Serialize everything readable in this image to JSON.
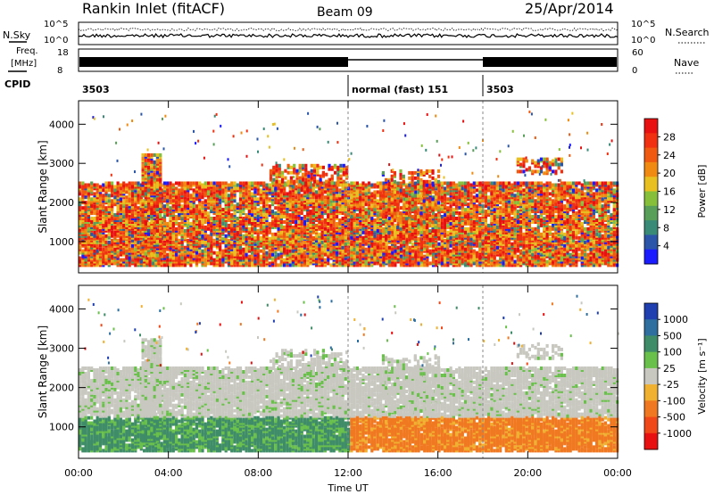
{
  "header": {
    "station": "Rankin Inlet (fitACF)",
    "beam": "Beam 09",
    "date": "25/Apr/2014"
  },
  "noise_panel": {
    "left_label": "N.Sky",
    "right_label": "N.Search",
    "y_ticks_left": [
      "10^5",
      "10^0"
    ],
    "y_ticks_right": [
      "10^5",
      "10^0"
    ]
  },
  "freq_panel": {
    "left_label_1": "Freq.",
    "left_label_2": "[MHz]",
    "right_label": "Nave",
    "y_ticks_left": [
      "18",
      "8"
    ],
    "y_ticks_right": [
      "60",
      "0"
    ]
  },
  "cpid_panel": {
    "label": "CPID",
    "segments": [
      {
        "start_hour": 0,
        "end_hour": 12,
        "text": "3503"
      },
      {
        "start_hour": 12,
        "end_hour": 18,
        "text": "normal (fast) 151"
      },
      {
        "start_hour": 18,
        "end_hour": 24,
        "text": "3503"
      }
    ]
  },
  "chart_data": [
    {
      "type": "heatmap",
      "title": "Power",
      "ylabel": "Slant Range [km]",
      "xlabel": "Time UT",
      "xlim": [
        0,
        24
      ],
      "ylim": [
        200,
        4600
      ],
      "x_ticks": [
        "00:00",
        "04:00",
        "08:00",
        "12:00",
        "16:00",
        "20:00",
        "00:00"
      ],
      "y_ticks": [
        1000,
        2000,
        3000,
        4000
      ],
      "colorbar": {
        "label": "Power [dB]",
        "ticks": [
          4,
          8,
          12,
          16,
          20,
          24,
          28
        ],
        "colors": [
          "#1b1bff",
          "#2a55a8",
          "#3a8a78",
          "#58a05a",
          "#86c03a",
          "#e8c020",
          "#f08a10",
          "#f05a10",
          "#f03010",
          "#e81010"
        ]
      }
    },
    {
      "type": "heatmap",
      "title": "Velocity",
      "ylabel": "Slant Range [km]",
      "xlabel": "Time UT",
      "xlim": [
        0,
        24
      ],
      "ylim": [
        200,
        4600
      ],
      "x_ticks": [
        "00:00",
        "04:00",
        "08:00",
        "12:00",
        "16:00",
        "20:00",
        "00:00"
      ],
      "y_ticks": [
        1000,
        2000,
        3000,
        4000
      ],
      "colorbar": {
        "label": "Velocity [m s⁻¹]",
        "ticks": [
          "1000",
          "500",
          "100",
          "25",
          "-25",
          "-100",
          "-500",
          "-1000"
        ],
        "colors": [
          "#1f3fb0",
          "#2e6fa0",
          "#3f8c68",
          "#69c04a",
          "#c8c8c0",
          "#f0b030",
          "#f07820",
          "#f04818",
          "#e81010"
        ]
      }
    }
  ],
  "time_axis": {
    "label": "Time UT",
    "ticks": [
      "00:00",
      "04:00",
      "08:00",
      "12:00",
      "16:00",
      "20:00",
      "00:00"
    ]
  }
}
